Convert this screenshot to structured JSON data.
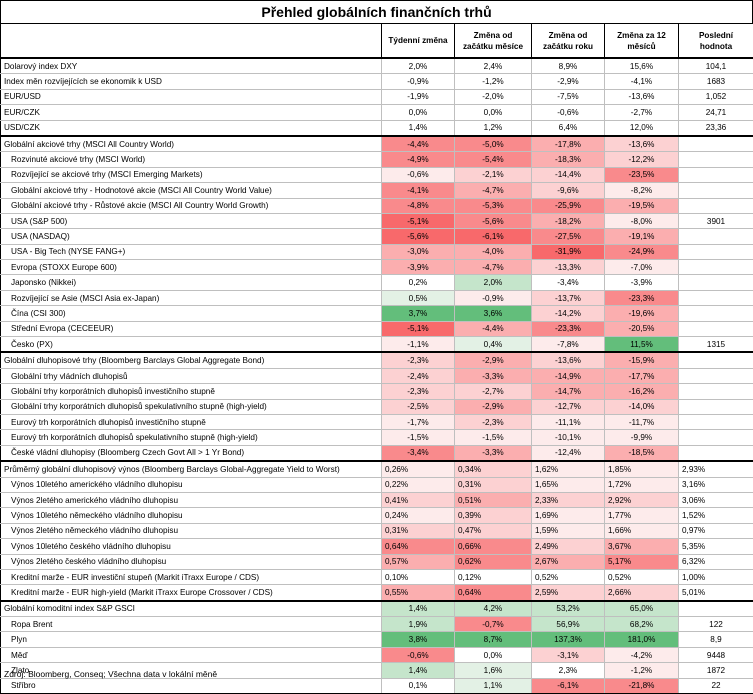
{
  "title": "Přehled globálních finančních trhů",
  "headers": [
    "",
    "Týdenní změna",
    "Změna od začátku měsíce",
    "Změna od začátku roku",
    "Změna za 12 měsíců",
    "Poslední hodnota"
  ],
  "sections": [
    {
      "rows": [
        {
          "label": "Dolarový index DXY",
          "values": [
            "2,0%",
            "2,4%",
            "8,9%",
            "15,6%",
            "104,1"
          ],
          "colors": [
            "",
            "",
            "",
            "",
            ""
          ]
        },
        {
          "label": "Index měn rozvíjejících se ekonomik k USD",
          "values": [
            "-0,9%",
            "-1,2%",
            "-2,9%",
            "-4,1%",
            "1683"
          ],
          "colors": [
            "",
            "",
            "",
            "",
            ""
          ]
        },
        {
          "label": "EUR/USD",
          "values": [
            "-1,9%",
            "-2,0%",
            "-7,5%",
            "-13,6%",
            "1,052"
          ],
          "colors": [
            "",
            "",
            "",
            "",
            ""
          ]
        },
        {
          "label": "EUR/CZK",
          "values": [
            "0,0%",
            "0,0%",
            "-0,6%",
            "-2,7%",
            "24,71"
          ],
          "colors": [
            "",
            "",
            "",
            "",
            ""
          ]
        },
        {
          "label": "USD/CZK",
          "values": [
            "1,4%",
            "1,2%",
            "6,4%",
            "12,0%",
            "23,36"
          ],
          "colors": [
            "",
            "",
            "",
            "",
            ""
          ]
        }
      ]
    },
    {
      "rows": [
        {
          "label": "Globální akciové trhy (MSCI All Country World)",
          "values": [
            "-4,4%",
            "-5,0%",
            "-17,8%",
            "-13,6%",
            ""
          ],
          "colors": [
            "r4",
            "r4",
            "r3",
            "r2",
            ""
          ],
          "indent": false
        },
        {
          "label": "Rozvinuté akciové trhy (MSCI World)",
          "values": [
            "-4,9%",
            "-5,4%",
            "-18,3%",
            "-12,2%",
            ""
          ],
          "colors": [
            "r4",
            "r4",
            "r3",
            "r2",
            ""
          ],
          "indent": true
        },
        {
          "label": "Rozvíjející se akciové trhy (MSCI Emerging Markets)",
          "values": [
            "-0,6%",
            "-2,1%",
            "-14,4%",
            "-23,5%",
            ""
          ],
          "colors": [
            "r1",
            "r2",
            "r2",
            "r4",
            ""
          ],
          "indent": true
        },
        {
          "label": "Globální akciové trhy - Hodnotové akcie (MSCI All Country World Value)",
          "values": [
            "-4,1%",
            "-4,7%",
            "-9,6%",
            "-8,2%",
            ""
          ],
          "colors": [
            "r4",
            "r3",
            "r2",
            "r1",
            ""
          ],
          "indent": true
        },
        {
          "label": "Globální akciové trhy - Růstové akcie (MSCI All Country World Growth)",
          "values": [
            "-4,8%",
            "-5,3%",
            "-25,9%",
            "-19,5%",
            ""
          ],
          "colors": [
            "r4",
            "r4",
            "r4",
            "r3",
            ""
          ],
          "indent": true
        },
        {
          "label": "USA (S&P 500)",
          "values": [
            "-5,1%",
            "-5,6%",
            "-18,2%",
            "-8,0%",
            "3901"
          ],
          "colors": [
            "r5",
            "r4",
            "r3",
            "r1",
            ""
          ],
          "indent": true
        },
        {
          "label": "USA (NASDAQ)",
          "values": [
            "-5,6%",
            "-6,1%",
            "-27,5%",
            "-19,1%",
            ""
          ],
          "colors": [
            "r5",
            "r5",
            "r4",
            "r3",
            ""
          ],
          "indent": true
        },
        {
          "label": "USA - Big Tech (NYSE FANG+)",
          "values": [
            "-3,0%",
            "-4,0%",
            "-31,9%",
            "-24,9%",
            ""
          ],
          "colors": [
            "r3",
            "r3",
            "r5",
            "r4",
            ""
          ],
          "indent": true
        },
        {
          "label": "Evropa (STOXX Europe 600)",
          "values": [
            "-3,9%",
            "-4,7%",
            "-13,3%",
            "-7,0%",
            ""
          ],
          "colors": [
            "r3",
            "r3",
            "r2",
            "r1",
            ""
          ],
          "indent": true
        },
        {
          "label": "Japonsko (Nikkei)",
          "values": [
            "0,2%",
            "2,0%",
            "-3,4%",
            "-3,9%",
            ""
          ],
          "colors": [
            "",
            "g2",
            "",
            "",
            ""
          ],
          "indent": true
        },
        {
          "label": "Rozvíjející se Asie (MSCI Asia ex-Japan)",
          "values": [
            "0,5%",
            "-0,9%",
            "-13,7%",
            "-23,3%",
            ""
          ],
          "colors": [
            "g1",
            "r1",
            "r2",
            "r4",
            ""
          ],
          "indent": true
        },
        {
          "label": "Čína (CSI 300)",
          "values": [
            "3,7%",
            "3,6%",
            "-14,2%",
            "-19,6%",
            ""
          ],
          "colors": [
            "g4",
            "g4",
            "r2",
            "r3",
            ""
          ],
          "indent": true
        },
        {
          "label": "Střední Evropa (CECEEUR)",
          "values": [
            "-5,1%",
            "-4,4%",
            "-23,3%",
            "-20,5%",
            ""
          ],
          "colors": [
            "r5",
            "r3",
            "r4",
            "r3",
            ""
          ],
          "indent": true
        },
        {
          "label": "Česko (PX)",
          "values": [
            "-1,1%",
            "0,4%",
            "-7,8%",
            "11,5%",
            "1315"
          ],
          "colors": [
            "r1",
            "g1",
            "r1",
            "g4",
            ""
          ],
          "indent": true
        }
      ]
    },
    {
      "rows": [
        {
          "label": "Globální dluhopisové trhy (Bloomberg Barclays Global Aggregate Bond)",
          "values": [
            "-2,3%",
            "-2,9%",
            "-13,6%",
            "-15,9%",
            ""
          ],
          "colors": [
            "r2",
            "r3",
            "r2",
            "r3",
            ""
          ],
          "indent": false
        },
        {
          "label": "Globální trhy vládních dluhopisů",
          "values": [
            "-2,4%",
            "-3,3%",
            "-14,9%",
            "-17,7%",
            ""
          ],
          "colors": [
            "r2",
            "r3",
            "r3",
            "r3",
            ""
          ],
          "indent": true
        },
        {
          "label": "Globální trhy korporátních dluhopisů investičního stupně",
          "values": [
            "-2,3%",
            "-2,7%",
            "-14,7%",
            "-16,2%",
            ""
          ],
          "colors": [
            "r2",
            "r2",
            "r3",
            "r3",
            ""
          ],
          "indent": true
        },
        {
          "label": "Globální trhy korporátních dluhopisů spekulativního stupně (high-yield)",
          "values": [
            "-2,5%",
            "-2,9%",
            "-12,7%",
            "-14,0%",
            ""
          ],
          "colors": [
            "r2",
            "r3",
            "r2",
            "r2",
            ""
          ],
          "indent": true
        },
        {
          "label": "Eurový trh korporátních dluhopisů investičního stupně",
          "values": [
            "-1,7%",
            "-2,3%",
            "-11,1%",
            "-11,7%",
            ""
          ],
          "colors": [
            "r1",
            "r2",
            "r1",
            "r1",
            ""
          ],
          "indent": true
        },
        {
          "label": "Eurový trh korporátních dluhopisů spekulativního stupně (high-yield)",
          "values": [
            "-1,5%",
            "-1,5%",
            "-10,1%",
            "-9,9%",
            ""
          ],
          "colors": [
            "r1",
            "r1",
            "r1",
            "r1",
            ""
          ],
          "indent": true
        },
        {
          "label": "České vládní dluhopisy (Bloomberg Czech Govt All > 1 Yr Bond)",
          "values": [
            "-3,4%",
            "-3,3%",
            "-12,4%",
            "-18,5%",
            ""
          ],
          "colors": [
            "r4",
            "r3",
            "r1",
            "r3",
            ""
          ],
          "indent": true
        }
      ]
    },
    {
      "rows": [
        {
          "label": "Průměrný globální dluhopisový výnos (Bloomberg Barclays Global-Aggregate Yield to Worst)",
          "values": [
            "0,26%",
            "0,34%",
            "1,62%",
            "1,85%",
            "2,93%"
          ],
          "colors": [
            "r1",
            "r2",
            "r1",
            "r1",
            ""
          ],
          "indent": false,
          "valuesLeft": true
        },
        {
          "label": "Výnos 10letého amerického vládního dluhopisu",
          "values": [
            "0,22%",
            "0,31%",
            "1,65%",
            "1,72%",
            "3,16%"
          ],
          "colors": [
            "r1",
            "r2",
            "r1",
            "r1",
            ""
          ],
          "indent": true,
          "valuesLeft": true
        },
        {
          "label": "Výnos 2letého amerického vládního dluhopisu",
          "values": [
            "0,41%",
            "0,51%",
            "2,33%",
            "2,92%",
            "3,06%"
          ],
          "colors": [
            "r2",
            "r3",
            "r2",
            "r2",
            ""
          ],
          "indent": true,
          "valuesLeft": true
        },
        {
          "label": "Výnos 10letého německého vládního dluhopisu",
          "values": [
            "0,24%",
            "0,39%",
            "1,69%",
            "1,77%",
            "1,52%"
          ],
          "colors": [
            "r1",
            "r2",
            "r1",
            "r1",
            ""
          ],
          "indent": true,
          "valuesLeft": true
        },
        {
          "label": "Výnos 2letého německého vládního dluhopisu",
          "values": [
            "0,31%",
            "0,47%",
            "1,59%",
            "1,66%",
            "0,97%"
          ],
          "colors": [
            "r2",
            "r2",
            "r1",
            "r1",
            ""
          ],
          "indent": true,
          "valuesLeft": true
        },
        {
          "label": "Výnos 10letého českého vládního dluhopisu",
          "values": [
            "0,64%",
            "0,66%",
            "2,49%",
            "3,67%",
            "5,35%"
          ],
          "colors": [
            "r4",
            "r4",
            "r2",
            "r3",
            ""
          ],
          "indent": true,
          "valuesLeft": true
        },
        {
          "label": "Výnos 2letého českého vládního dluhopisu",
          "values": [
            "0,57%",
            "0,62%",
            "2,67%",
            "5,17%",
            "6,32%"
          ],
          "colors": [
            "r3",
            "r4",
            "r3",
            "r4",
            ""
          ],
          "indent": true,
          "valuesLeft": true
        },
        {
          "label": "Kreditní marže - EUR investiční stupeň (Markit iTraxx Europe / CDS)",
          "values": [
            "0,10%",
            "0,12%",
            "0,52%",
            "0,52%",
            "1,00%"
          ],
          "colors": [
            "",
            "",
            "",
            "",
            ""
          ],
          "indent": true,
          "valuesLeft": true
        },
        {
          "label": "Kreditní marže - EUR high-yield (Markit iTraxx Europe Crossover / CDS)",
          "values": [
            "0,55%",
            "0,64%",
            "2,59%",
            "2,66%",
            "5,01%"
          ],
          "colors": [
            "r3",
            "r4",
            "r2",
            "r2",
            ""
          ],
          "indent": true,
          "valuesLeft": true
        }
      ]
    },
    {
      "rows": [
        {
          "label": "Globální komoditní index S&P GSCI",
          "values": [
            "1,4%",
            "4,2%",
            "53,2%",
            "65,0%",
            ""
          ],
          "colors": [
            "g2",
            "g2",
            "g2",
            "g2",
            ""
          ],
          "indent": false
        },
        {
          "label": "Ropa Brent",
          "values": [
            "1,9%",
            "-0,7%",
            "56,9%",
            "68,2%",
            "122"
          ],
          "colors": [
            "g2",
            "r4",
            "g2",
            "g2",
            ""
          ],
          "indent": true
        },
        {
          "label": "Plyn",
          "values": [
            "3,8%",
            "8,7%",
            "137,3%",
            "181,0%",
            "8,9"
          ],
          "colors": [
            "g4",
            "g4",
            "g4",
            "g4",
            ""
          ],
          "indent": true
        },
        {
          "label": "Měď",
          "values": [
            "-0,6%",
            "0,0%",
            "-3,1%",
            "-4,2%",
            "9448"
          ],
          "colors": [
            "r4",
            "",
            "r2",
            "r1",
            ""
          ],
          "indent": true
        },
        {
          "label": "Zlato",
          "values": [
            "1,4%",
            "1,6%",
            "2,3%",
            "-1,2%",
            "1872"
          ],
          "colors": [
            "g2",
            "g1",
            "",
            "r1",
            ""
          ],
          "indent": true
        },
        {
          "label": "Stříbro",
          "values": [
            "0,1%",
            "1,1%",
            "-6,1%",
            "-21,8%",
            "22"
          ],
          "colors": [
            "",
            "g1",
            "r4",
            "r4",
            ""
          ],
          "indent": true
        }
      ]
    }
  ],
  "source": "Zdroj: Bloomberg, Conseq; Všechna data v lokální měně"
}
